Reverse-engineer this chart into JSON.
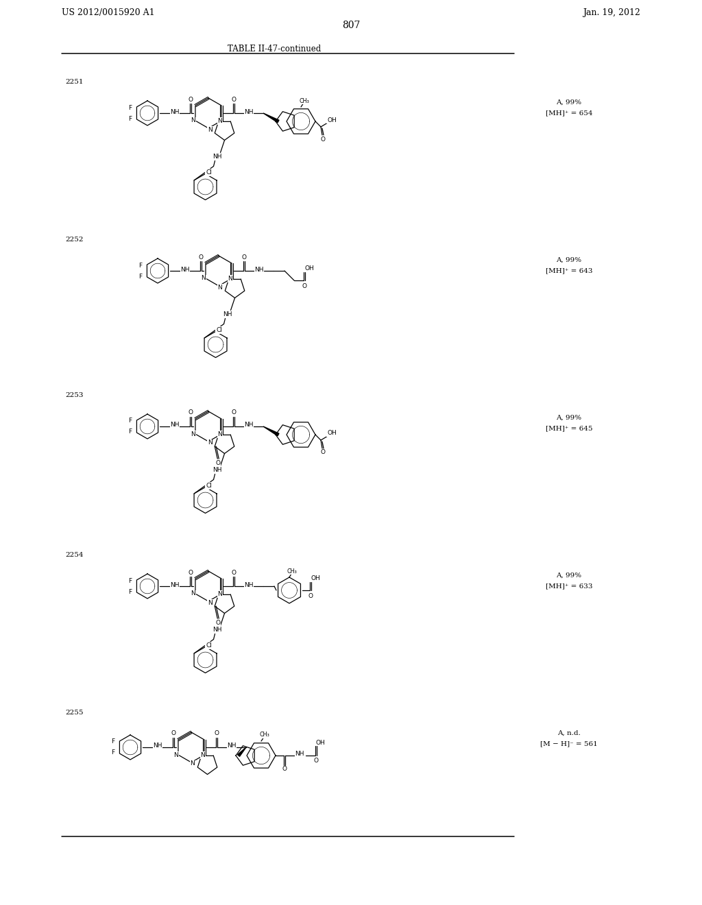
{
  "page_number": "807",
  "patent_left": "US 2012/0015920 A1",
  "patent_right": "Jan. 19, 2012",
  "table_title": "TABLE II-47-continued",
  "background_color": "#ffffff",
  "compounds": [
    {
      "num": "2251",
      "data1": "A, 99%",
      "data2": "[MH]⁺ = 654"
    },
    {
      "num": "2252",
      "data1": "A, 99%",
      "data2": "[MH]⁺ = 643"
    },
    {
      "num": "2253",
      "data1": "A, 99%",
      "data2": "[MH]⁺ = 645"
    },
    {
      "num": "2254",
      "data1": "A, 99%",
      "data2": "[MH]⁺ = 633"
    },
    {
      "num": "2255",
      "data1": "A, n.d.",
      "data2": "[M − H]⁻ = 561"
    }
  ]
}
